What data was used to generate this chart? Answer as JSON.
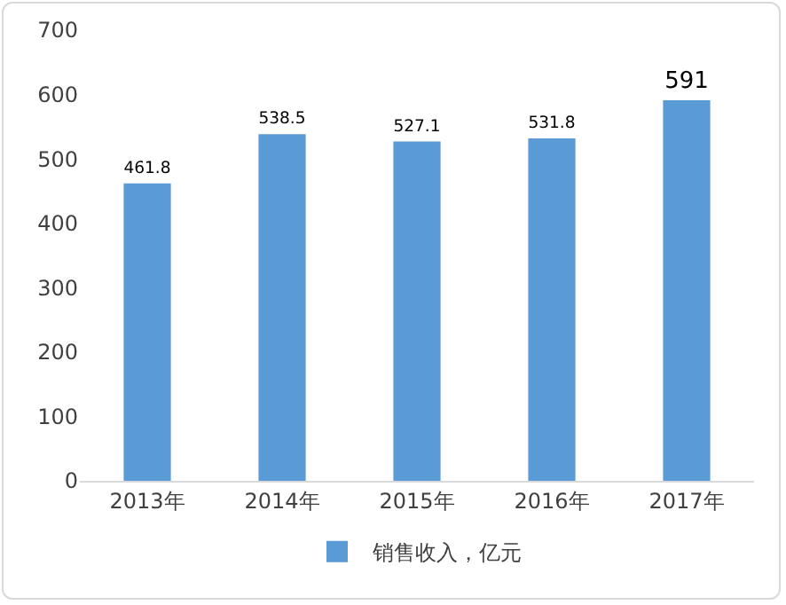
{
  "chart_data": {
    "type": "bar",
    "categories": [
      "2013年",
      "2014年",
      "2015年",
      "2016年",
      "2017年"
    ],
    "series": [
      {
        "name": "销售收入，亿元",
        "color": "#5b9bd5",
        "values": [
          461.8,
          538.5,
          527.1,
          531.8,
          591
        ]
      }
    ],
    "ylim": [
      0,
      700
    ],
    "yticks": [
      0,
      100,
      200,
      300,
      400,
      500,
      600,
      700
    ],
    "data_labels": true,
    "grid": false,
    "legend": "bottom"
  }
}
